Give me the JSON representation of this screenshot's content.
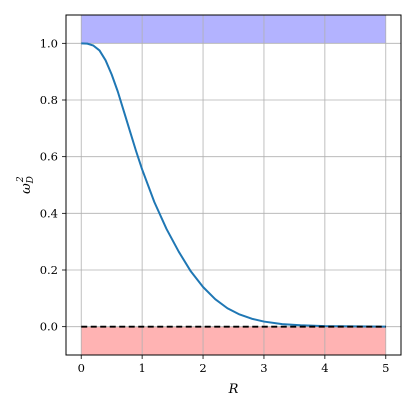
{
  "chart_data": {
    "type": "line",
    "title": "",
    "xlabel": "R",
    "ylabel": "ω",
    "ylabel_sup": "2",
    "ylabel_sub": "D",
    "xlim": [
      -0.25,
      5.25
    ],
    "ylim": [
      -0.1,
      1.1
    ],
    "xticks": [
      0,
      1,
      2,
      3,
      4,
      5
    ],
    "xtick_labels": [
      "0",
      "1",
      "2",
      "3",
      "4",
      "5"
    ],
    "yticks": [
      0.0,
      0.2,
      0.4,
      0.6,
      0.8,
      1.0
    ],
    "ytick_labels": [
      "0.0",
      "0.2",
      "0.4",
      "0.6",
      "0.8",
      "1.0"
    ],
    "grid": true,
    "bands": [
      {
        "x": [
          0,
          5
        ],
        "y": [
          1.0,
          1.1
        ],
        "color": "#b3b3ff"
      },
      {
        "x": [
          0,
          5
        ],
        "y": [
          -0.1,
          0.0
        ],
        "color": "#ffb3b3"
      }
    ],
    "series": [
      {
        "color": "#1f77b4",
        "style": "solid",
        "x": [
          0,
          0.1,
          0.2,
          0.3,
          0.4,
          0.5,
          0.6,
          0.7,
          0.8,
          0.9,
          1.0,
          1.2,
          1.4,
          1.6,
          1.8,
          2.0,
          2.2,
          2.4,
          2.6,
          2.8,
          3.0,
          3.3,
          3.6,
          4.0,
          4.5,
          5.0
        ],
        "y": [
          1.0,
          0.999,
          0.992,
          0.975,
          0.94,
          0.89,
          0.83,
          0.76,
          0.69,
          0.62,
          0.555,
          0.44,
          0.345,
          0.265,
          0.195,
          0.14,
          0.097,
          0.065,
          0.043,
          0.028,
          0.018,
          0.009,
          0.005,
          0.002,
          0.001,
          0.0
        ]
      },
      {
        "color": "#000000",
        "style": "dashed",
        "x": [
          0,
          5
        ],
        "y": [
          0,
          0
        ]
      }
    ]
  }
}
